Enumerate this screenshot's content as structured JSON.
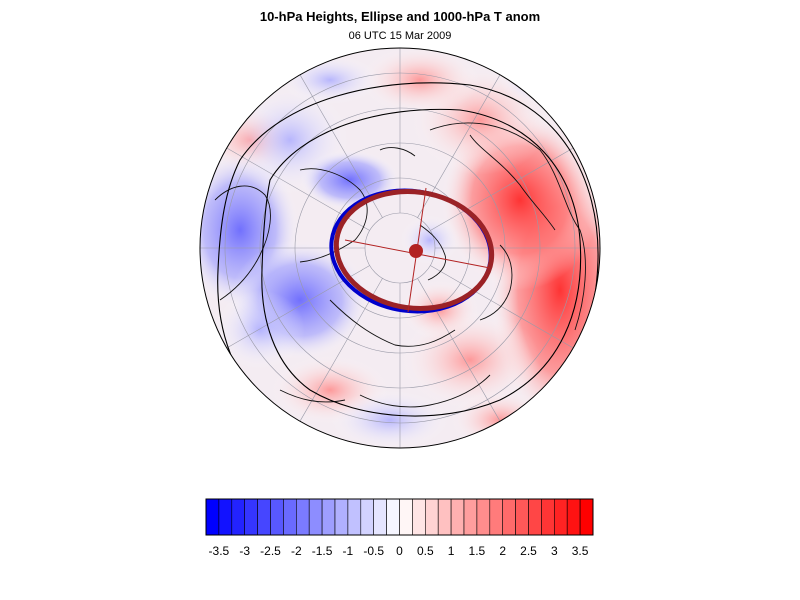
{
  "title": "10-hPa Heights, Ellipse and 1000-hPa T anom",
  "subtitle": "06 UTC 15 Mar 2009",
  "colors": {
    "negative": "#0000ff",
    "positive": "#ff0000",
    "ellipse_outer": "#9b2226",
    "ellipse_inner": "#0000cc",
    "height_contour": "#000000"
  },
  "colorbar": {
    "labels": [
      "-3.5",
      "-3",
      "-2.5",
      "-2",
      "-1.5",
      "-1",
      "-0.5",
      "0",
      "0.5",
      "1",
      "1.5",
      "2",
      "2.5",
      "3",
      "3.5"
    ],
    "min": -3.75,
    "max": 3.75,
    "step": 0.25
  }
}
